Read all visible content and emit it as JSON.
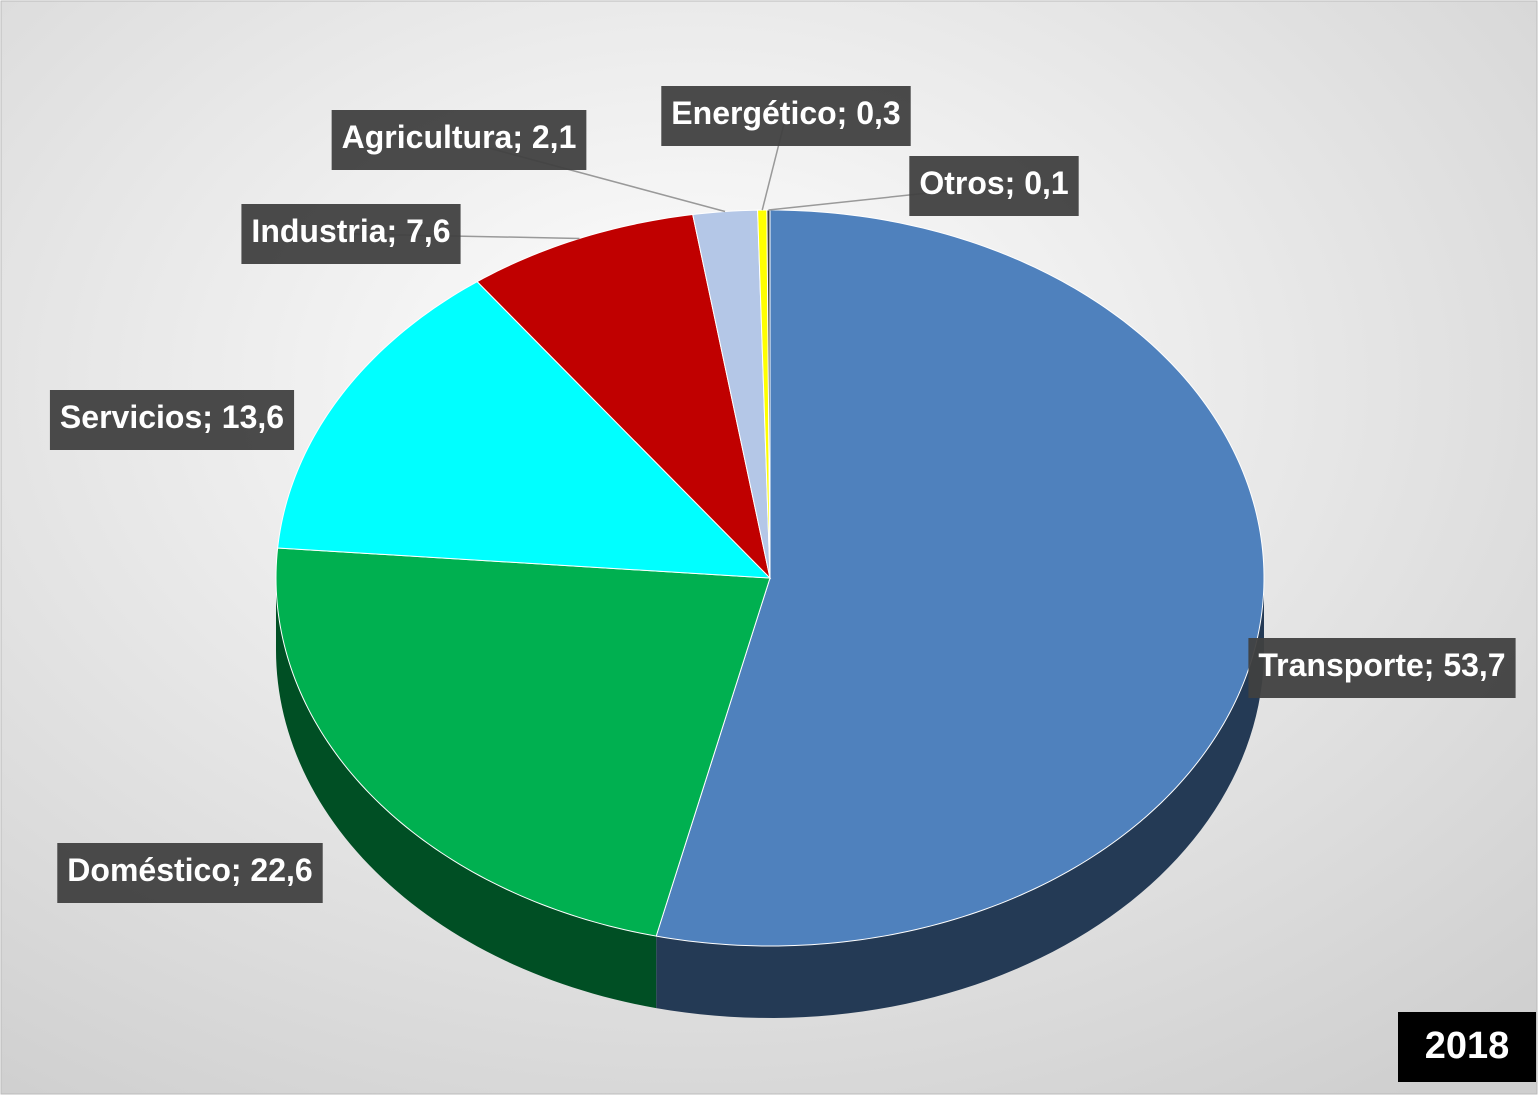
{
  "chart_data": {
    "type": "pie",
    "categories": [
      "Transporte",
      "Doméstico",
      "Servicios",
      "Industria",
      "Agricultura",
      "Energético",
      "Otros"
    ],
    "values": [
      53.7,
      22.6,
      13.6,
      7.6,
      2.1,
      0.3,
      0.1
    ],
    "value_labels": [
      "53,7",
      "22,6",
      "13,6",
      "7,6",
      "2,1",
      "0,3",
      "0,1"
    ],
    "label_separator": "; ",
    "colors": [
      "#4f81bd",
      "#00b050",
      "#00ffff",
      "#c00000",
      "#b4c7e7",
      "#ffff00",
      "#404040"
    ],
    "annotation": "2018"
  }
}
